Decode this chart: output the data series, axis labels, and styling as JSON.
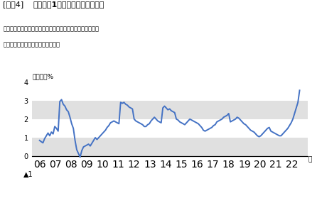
{
  "title_bracket": "[図表4]",
  "title_main": "消費者の1年後の予想インフレ率",
  "source_line1": "出所：内閣府「消費動向調査」よりニッセイ基礎研究所作成",
  "source_line2": "注：総世帯、原数値。加重平均値。",
  "ylabel": "前年比、%",
  "xlabel_suffix": "年",
  "ytick_vals": [
    0,
    1,
    2,
    3,
    4
  ],
  "ytick_labels": [
    "0",
    "1",
    "2",
    "3",
    "4"
  ],
  "neg_label": "▲1",
  "neg_val": -1,
  "ylim": [
    -1.4,
    4.15
  ],
  "xtick_labels": [
    "06",
    "07",
    "08",
    "09",
    "10",
    "11",
    "12",
    "13",
    "14",
    "15",
    "16",
    "17",
    "18",
    "19",
    "20",
    "21",
    "22"
  ],
  "line_color": "#4472C4",
  "line_width": 1.4,
  "bg_color": "#ffffff",
  "band_color": "#e0e0e0",
  "values": [
    0.85,
    0.78,
    0.72,
    0.95,
    1.1,
    1.25,
    1.1,
    1.3,
    1.2,
    1.6,
    1.5,
    1.35,
    2.95,
    3.05,
    2.8,
    2.7,
    2.5,
    2.4,
    2.1,
    1.75,
    1.5,
    0.85,
    0.35,
    0.15,
    -0.05,
    0.3,
    0.5,
    0.55,
    0.6,
    0.65,
    0.55,
    0.7,
    0.85,
    1.0,
    0.9,
    1.0,
    1.1,
    1.2,
    1.3,
    1.4,
    1.55,
    1.65,
    1.8,
    1.85,
    1.9,
    1.85,
    1.8,
    1.75,
    2.9,
    2.85,
    2.9,
    2.8,
    2.75,
    2.65,
    2.6,
    2.55,
    2.0,
    1.9,
    1.85,
    1.8,
    1.75,
    1.7,
    1.6,
    1.6,
    1.7,
    1.75,
    1.9,
    2.0,
    2.1,
    2.0,
    1.9,
    1.85,
    1.8,
    2.6,
    2.7,
    2.6,
    2.5,
    2.55,
    2.45,
    2.4,
    2.35,
    2.0,
    1.95,
    1.85,
    1.8,
    1.75,
    1.7,
    1.8,
    1.9,
    2.0,
    1.95,
    1.9,
    1.85,
    1.8,
    1.75,
    1.65,
    1.55,
    1.4,
    1.35,
    1.4,
    1.45,
    1.5,
    1.55,
    1.65,
    1.7,
    1.85,
    1.9,
    1.95,
    2.0,
    2.1,
    2.15,
    2.2,
    2.3,
    1.85,
    1.9,
    1.95,
    2.0,
    2.1,
    2.05,
    1.95,
    1.85,
    1.75,
    1.7,
    1.6,
    1.5,
    1.4,
    1.35,
    1.3,
    1.2,
    1.1,
    1.05,
    1.1,
    1.2,
    1.3,
    1.4,
    1.5,
    1.55,
    1.35,
    1.3,
    1.25,
    1.2,
    1.15,
    1.1,
    1.1,
    1.2,
    1.3,
    1.4,
    1.5,
    1.65,
    1.8,
    2.0,
    2.3,
    2.6,
    2.9,
    3.55
  ],
  "start_year": 2006,
  "end_year": 2022
}
